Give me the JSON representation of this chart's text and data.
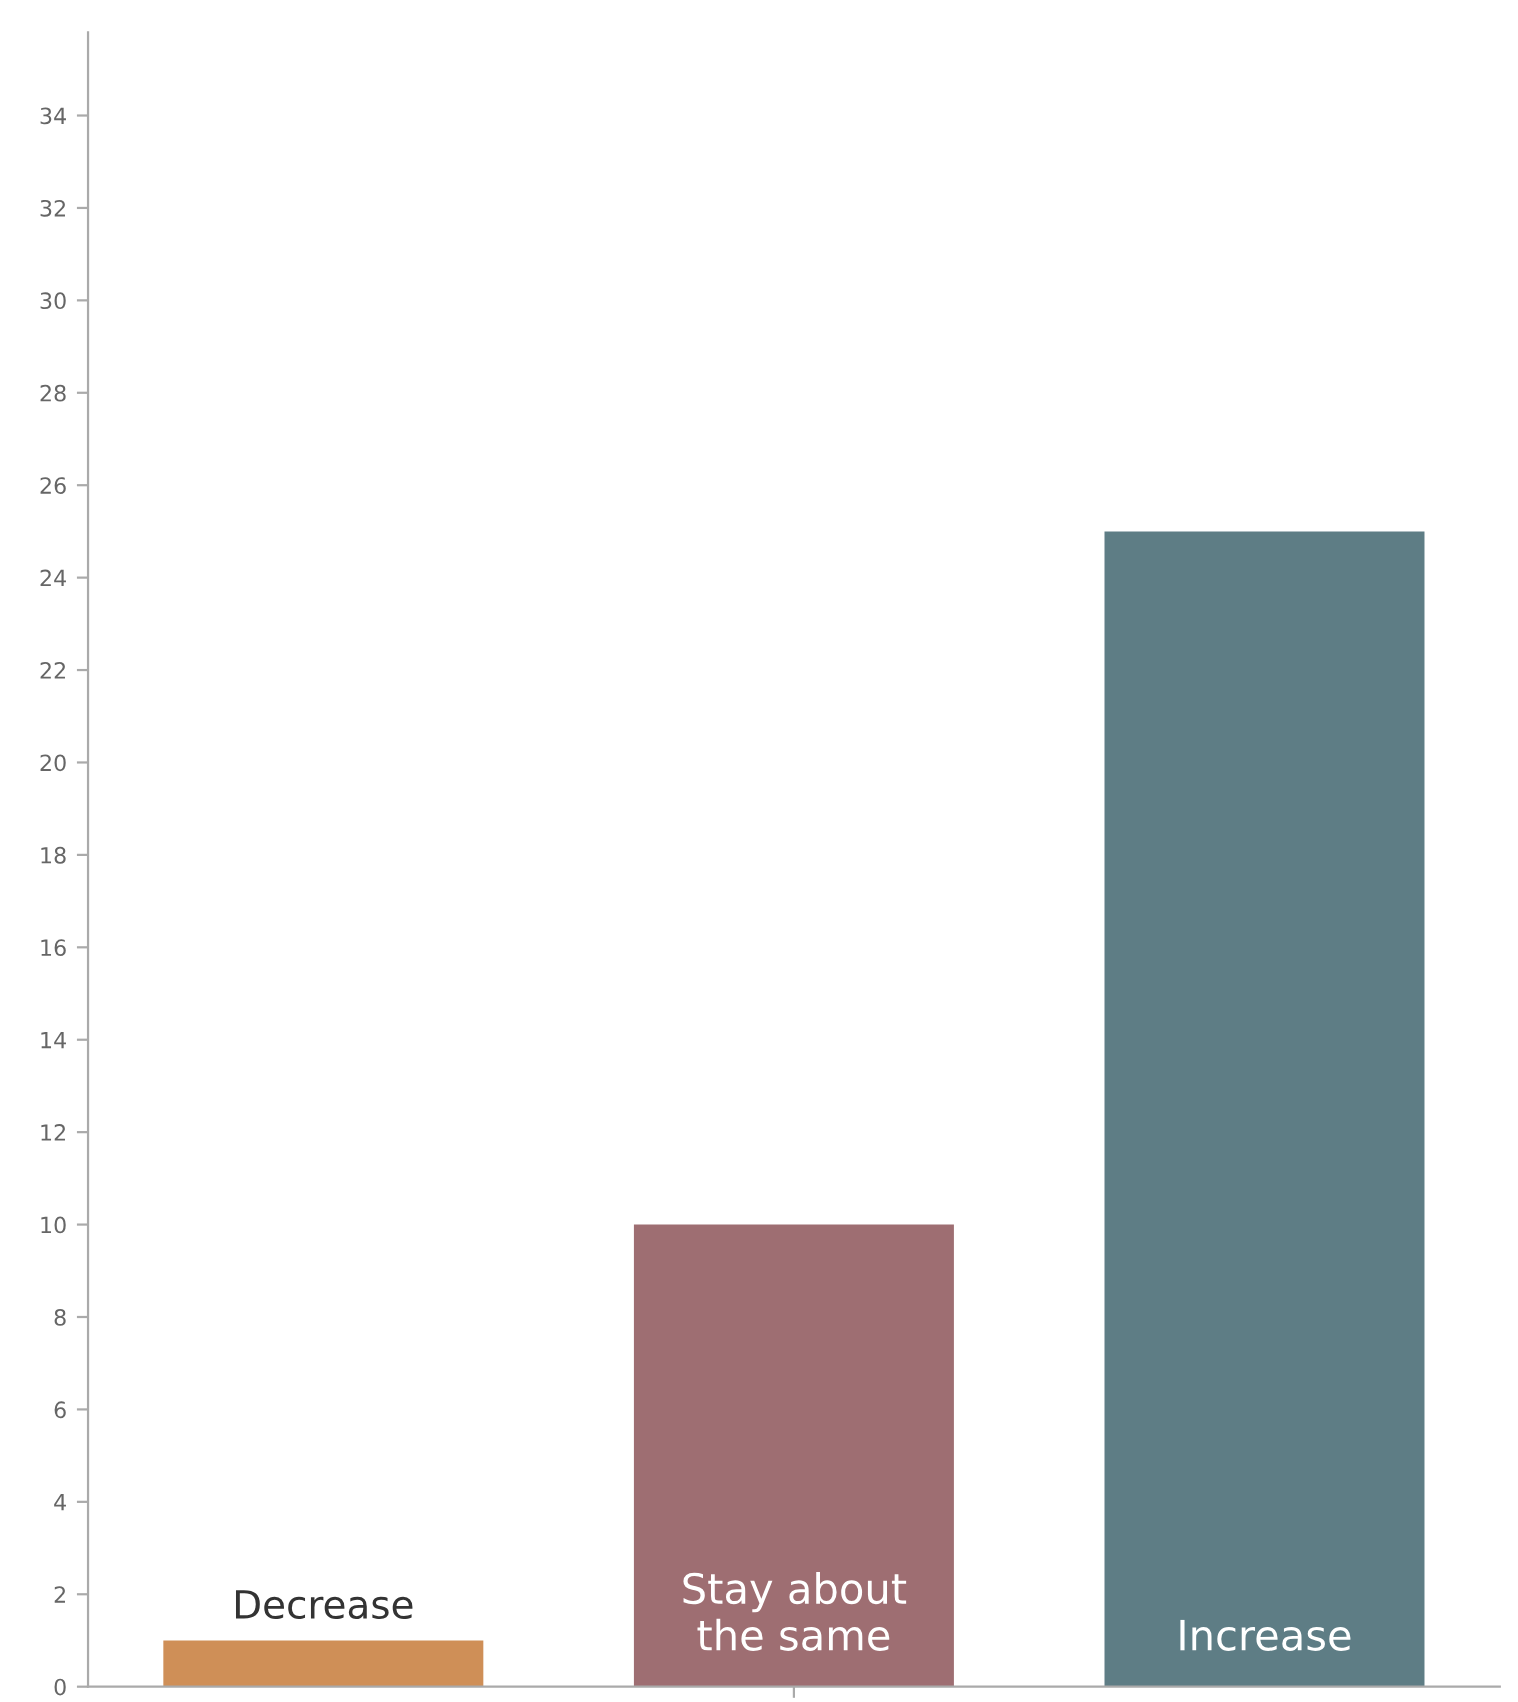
{
  "chart_data": {
    "type": "bar",
    "categories": [
      "Decrease",
      "Stay about\nthe same",
      "Increase"
    ],
    "values": [
      1,
      10,
      25
    ],
    "colors": [
      "#cf8f57",
      "#9e6e72",
      "#5e7d85"
    ],
    "ylim": [
      0,
      35.8
    ],
    "yticks": [
      0,
      2,
      4,
      6,
      8,
      10,
      12,
      14,
      16,
      18,
      20,
      22,
      24,
      26,
      28,
      30,
      32,
      34
    ],
    "tick_labels": "y",
    "grid": false,
    "legend": false
  }
}
